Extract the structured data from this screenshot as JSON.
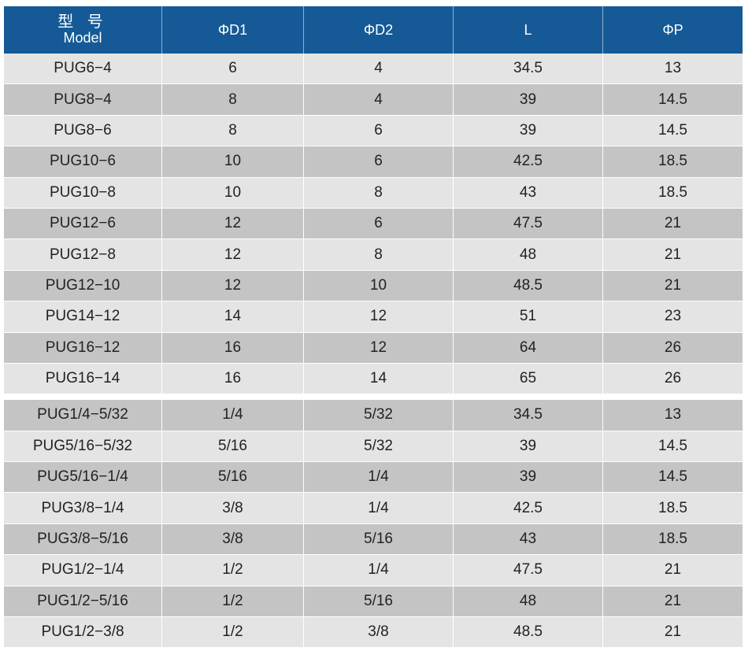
{
  "header": {
    "model_zh": "型 号",
    "model_en": "Model",
    "d1": "ΦD1",
    "d2": "ΦD2",
    "l": "L",
    "p": "ΦP"
  },
  "colors": {
    "header": "#155a96",
    "row_light": "#e4e4e4",
    "row_dark": "#c4c4c4"
  },
  "metric_rows": [
    [
      "PUG6−4",
      "6",
      "4",
      "34.5",
      "13"
    ],
    [
      "PUG8−4",
      "8",
      "4",
      "39",
      "14.5"
    ],
    [
      "PUG8−6",
      "8",
      "6",
      "39",
      "14.5"
    ],
    [
      "PUG10−6",
      "10",
      "6",
      "42.5",
      "18.5"
    ],
    [
      "PUG10−8",
      "10",
      "8",
      "43",
      "18.5"
    ],
    [
      "PUG12−6",
      "12",
      "6",
      "47.5",
      "21"
    ],
    [
      "PUG12−8",
      "12",
      "8",
      "48",
      "21"
    ],
    [
      "PUG12−10",
      "12",
      "10",
      "48.5",
      "21"
    ],
    [
      "PUG14−12",
      "14",
      "12",
      "51",
      "23"
    ],
    [
      "PUG16−12",
      "16",
      "12",
      "64",
      "26"
    ],
    [
      "PUG16−14",
      "16",
      "14",
      "65",
      "26"
    ]
  ],
  "inch_rows": [
    [
      "PUG1/4−5/32",
      "1/4",
      "5/32",
      "34.5",
      "13"
    ],
    [
      "PUG5/16−5/32",
      "5/16",
      "5/32",
      "39",
      "14.5"
    ],
    [
      "PUG5/16−1/4",
      "5/16",
      "1/4",
      "39",
      "14.5"
    ],
    [
      "PUG3/8−1/4",
      "3/8",
      "1/4",
      "42.5",
      "18.5"
    ],
    [
      "PUG3/8−5/16",
      "3/8",
      "5/16",
      "43",
      "18.5"
    ],
    [
      "PUG1/2−1/4",
      "1/2",
      "1/4",
      "47.5",
      "21"
    ],
    [
      "PUG1/2−5/16",
      "1/2",
      "5/16",
      "48",
      "21"
    ],
    [
      "PUG1/2−3/8",
      "1/2",
      "3/8",
      "48.5",
      "21"
    ]
  ]
}
